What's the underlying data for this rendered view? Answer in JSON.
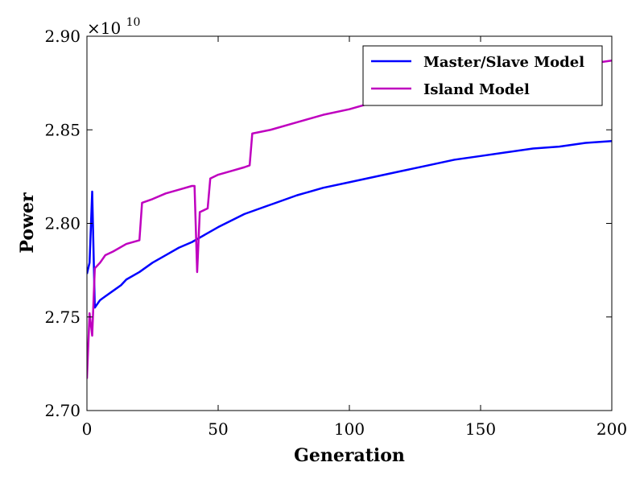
{
  "chart_data": {
    "type": "line",
    "title": "",
    "xlabel": "Generation",
    "ylabel": "Power",
    "xlim": [
      0,
      200
    ],
    "ylim": [
      2.7,
      2.9
    ],
    "y_multiplier": "×10",
    "y_multiplier_exp": "10",
    "xticks": [
      0,
      50,
      100,
      150,
      200
    ],
    "xtick_labels": [
      "0",
      "50",
      "100",
      "150",
      "200"
    ],
    "yticks": [
      2.7,
      2.75,
      2.8,
      2.85,
      2.9
    ],
    "ytick_labels": [
      "2.70",
      "2.75",
      "2.80",
      "2.85",
      "2.90"
    ],
    "grid": false,
    "legend_position": "top-right",
    "series": [
      {
        "name": "Master/Slave Model",
        "color": "#0000ff",
        "x": [
          0,
          1,
          2,
          3,
          5,
          7,
          10,
          13,
          15,
          20,
          25,
          30,
          35,
          40,
          45,
          50,
          60,
          70,
          80,
          90,
          100,
          110,
          120,
          130,
          140,
          150,
          160,
          170,
          180,
          190,
          200
        ],
        "y": [
          2.773,
          2.779,
          2.817,
          2.755,
          2.759,
          2.761,
          2.764,
          2.767,
          2.77,
          2.774,
          2.779,
          2.783,
          2.787,
          2.79,
          2.794,
          2.798,
          2.805,
          2.81,
          2.815,
          2.819,
          2.822,
          2.825,
          2.828,
          2.831,
          2.834,
          2.836,
          2.838,
          2.84,
          2.841,
          2.843,
          2.844
        ]
      },
      {
        "name": "Island Model",
        "color": "#bf00bf",
        "x": [
          0,
          1,
          2,
          3,
          5,
          7,
          10,
          15,
          20,
          21,
          25,
          30,
          35,
          40,
          41,
          42,
          43,
          46,
          47,
          50,
          55,
          60,
          62,
          63,
          70,
          80,
          85,
          90,
          100,
          110,
          120,
          130,
          140,
          150,
          160,
          170,
          180,
          190,
          200
        ],
        "y": [
          2.717,
          2.752,
          2.74,
          2.776,
          2.779,
          2.783,
          2.785,
          2.789,
          2.791,
          2.811,
          2.813,
          2.816,
          2.818,
          2.82,
          2.82,
          2.774,
          2.806,
          2.808,
          2.824,
          2.826,
          2.828,
          2.83,
          2.831,
          2.848,
          2.85,
          2.854,
          2.856,
          2.858,
          2.861,
          2.865,
          2.869,
          2.872,
          2.875,
          2.877,
          2.88,
          2.882,
          2.884,
          2.885,
          2.887
        ]
      }
    ]
  }
}
